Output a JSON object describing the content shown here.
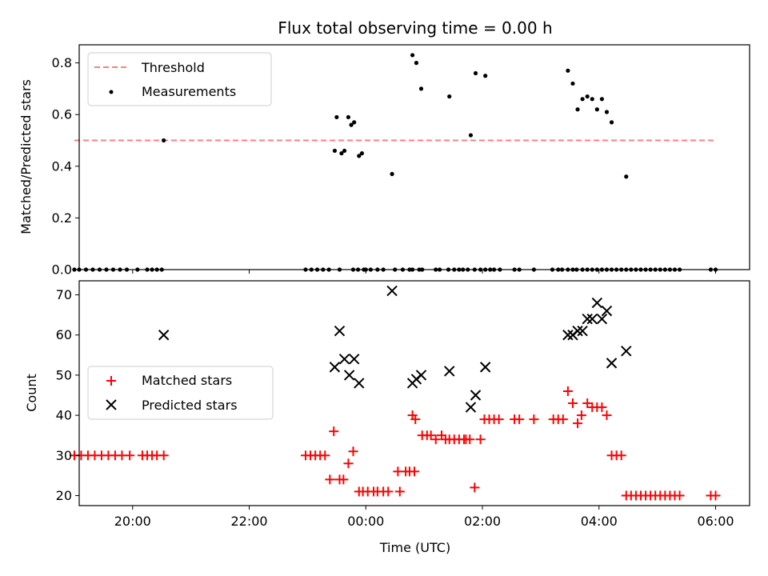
{
  "chart_data": {
    "title": "Flux total observing time = 0.00 h",
    "x_axis": {
      "label": "Time (UTC)",
      "type": "time",
      "range": [
        "19:05",
        "06:35"
      ],
      "ticks": [
        "20:00",
        "22:00",
        "00:00",
        "02:00",
        "04:00",
        "06:00"
      ]
    },
    "panels": [
      {
        "name": "ratio",
        "type": "scatter",
        "ylabel": "Matched/Predicted stars",
        "ylim": [
          0,
          0.87
        ],
        "yticks": [
          "0.0",
          "0.2",
          "0.4",
          "0.6",
          "0.8"
        ],
        "grid": false,
        "legend": "upper-left",
        "series": [
          {
            "name": "Threshold",
            "kind": "dashed-line",
            "color": "#ff7f7f",
            "x": [
              "19:00",
              "06:00"
            ],
            "y": [
              0.5,
              0.5
            ]
          },
          {
            "name": "Measurements",
            "kind": "dots",
            "color": "#000000",
            "x": [
              "19:00",
              "19:05",
              "19:12",
              "19:19",
              "19:26",
              "19:33",
              "19:40",
              "19:47",
              "19:54",
              "20:05",
              "20:15",
              "20:20",
              "20:25",
              "20:30",
              "20:32",
              "22:58",
              "23:04",
              "23:10",
              "23:16",
              "23:22",
              "23:33",
              "23:38",
              "23:42",
              "23:47",
              "23:52",
              "23:58",
              "23:56",
              "00:00",
              "00:05",
              "00:12",
              "00:18",
              "00:30",
              "00:38",
              "00:45",
              "00:48",
              "00:55",
              "00:58",
              "01:12",
              "01:16",
              "01:25",
              "01:31",
              "01:36",
              "01:40",
              "01:45",
              "01:52",
              "01:58",
              "02:03",
              "02:08",
              "02:12",
              "02:18",
              "02:33",
              "02:38",
              "02:53",
              "03:12",
              "03:18",
              "03:22",
              "03:28",
              "03:33",
              "03:37",
              "03:43",
              "03:48",
              "03:53",
              "03:58",
              "04:03",
              "04:08",
              "04:13",
              "04:18",
              "04:23",
              "04:28",
              "04:33",
              "04:38",
              "04:43",
              "04:48",
              "04:53",
              "04:58",
              "05:03",
              "05:08",
              "05:13",
              "05:18",
              "05:23",
              "05:55",
              "06:00",
              "23:28",
              "23:30",
              "23:35",
              "23:45",
              "23:48",
              "23:53",
              "00:27",
              "00:48",
              "00:52",
              "00:57",
              "01:26",
              "01:48",
              "01:53",
              "02:03",
              "03:28",
              "03:33",
              "03:38",
              "03:43",
              "03:48",
              "03:53",
              "03:58",
              "04:03",
              "04:08",
              "04:13",
              "04:28"
            ],
            "y": [
              0,
              0,
              0,
              0,
              0,
              0,
              0,
              0,
              0,
              0,
              0,
              0,
              0,
              0,
              0.5,
              0,
              0,
              0,
              0,
              0,
              0,
              0.46,
              0.59,
              0,
              0,
              0,
              0.45,
              0,
              0,
              0,
              0,
              0,
              0,
              0,
              0,
              0,
              0,
              0,
              0,
              0,
              0,
              0,
              0,
              0,
              0,
              0,
              0,
              0,
              0,
              0,
              0,
              0,
              0,
              0,
              0,
              0,
              0,
              0,
              0,
              0,
              0,
              0,
              0,
              0,
              0,
              0,
              0,
              0,
              0,
              0,
              0,
              0,
              0,
              0,
              0,
              0,
              0,
              0,
              0,
              0,
              0,
              0,
              0.46,
              0.59,
              0.45,
              0.56,
              0.57,
              0.44,
              0.37,
              0.83,
              0.8,
              0.7,
              0.67,
              0.52,
              0.76,
              0.75,
              0.77,
              0.72,
              0.62,
              0.66,
              0.67,
              0.66,
              0.62,
              0.66,
              0.61,
              0.57,
              0.36
            ]
          }
        ]
      },
      {
        "name": "counts",
        "type": "scatter",
        "ylabel": "Count",
        "ylim": [
          17.5,
          73.5
        ],
        "yticks": [
          "20",
          "30",
          "40",
          "50",
          "60",
          "70"
        ],
        "grid": false,
        "legend": "center-left",
        "series": [
          {
            "name": "Matched stars",
            "marker": "+",
            "color": "#ff0000",
            "x": [
              "19:00",
              "19:07",
              "19:14",
              "19:21",
              "19:28",
              "19:35",
              "19:42",
              "19:49",
              "19:57",
              "20:10",
              "20:15",
              "20:20",
              "20:25",
              "20:32",
              "22:58",
              "23:03",
              "23:08",
              "23:13",
              "23:18",
              "23:23",
              "23:27",
              "23:33",
              "23:37",
              "23:42",
              "23:47",
              "23:53",
              "23:57",
              "00:02",
              "00:08",
              "00:12",
              "00:18",
              "00:23",
              "00:33",
              "00:48",
              "00:51",
              "00:58",
              "01:03",
              "01:07",
              "01:12",
              "01:18",
              "01:22",
              "01:26",
              "01:31",
              "01:36",
              "01:41",
              "01:47",
              "01:52",
              "01:58",
              "02:02",
              "02:07",
              "02:12",
              "02:17",
              "02:33",
              "02:38",
              "02:53",
              "03:13",
              "03:18",
              "03:23",
              "03:28",
              "03:33",
              "03:38",
              "03:42",
              "03:48",
              "03:53",
              "03:58",
              "04:03",
              "04:08",
              "04:13",
              "04:18",
              "04:23",
              "04:28",
              "04:33",
              "04:38",
              "04:43",
              "04:48",
              "04:53",
              "04:58",
              "05:03",
              "05:08",
              "05:13",
              "05:18",
              "05:23",
              "05:55",
              "06:00",
              "00:35",
              "00:41",
              "00:45",
              "00:50",
              "01:43"
            ],
            "y": [
              30,
              30,
              30,
              30,
              30,
              30,
              30,
              30,
              30,
              30,
              30,
              30,
              30,
              30,
              30,
              30,
              30,
              30,
              30,
              24,
              36,
              24,
              24,
              28,
              31,
              21,
              21,
              21,
              21,
              21,
              21,
              21,
              26,
              40,
              39,
              35,
              35,
              35,
              34,
              35,
              34,
              34,
              34,
              34,
              34,
              34,
              22,
              34,
              39,
              39,
              39,
              39,
              39,
              39,
              39,
              39,
              39,
              39,
              46,
              43,
              38,
              40,
              43,
              42,
              42,
              42,
              40,
              30,
              30,
              30,
              20,
              20,
              20,
              20,
              20,
              20,
              20,
              20,
              20,
              20,
              20,
              20,
              20,
              20,
              21,
              26,
              26,
              26,
              34
            ]
          },
          {
            "name": "Predicted stars",
            "marker": "x",
            "color": "#000000",
            "x": [
              "20:32",
              "23:28",
              "23:33",
              "23:38",
              "23:43",
              "23:48",
              "23:53",
              "00:27",
              "00:48",
              "00:52",
              "00:57",
              "01:26",
              "01:48",
              "01:53",
              "02:03",
              "03:28",
              "03:33",
              "03:38",
              "03:43",
              "03:48",
              "03:53",
              "03:58",
              "04:03",
              "04:08",
              "04:13",
              "04:28"
            ],
            "y": [
              60,
              52,
              61,
              54,
              50,
              54,
              48,
              71,
              48,
              49,
              50,
              51,
              42,
              45,
              52,
              60,
              60,
              61,
              61,
              64,
              64,
              68,
              64,
              66,
              53,
              56
            ]
          }
        ]
      }
    ]
  }
}
